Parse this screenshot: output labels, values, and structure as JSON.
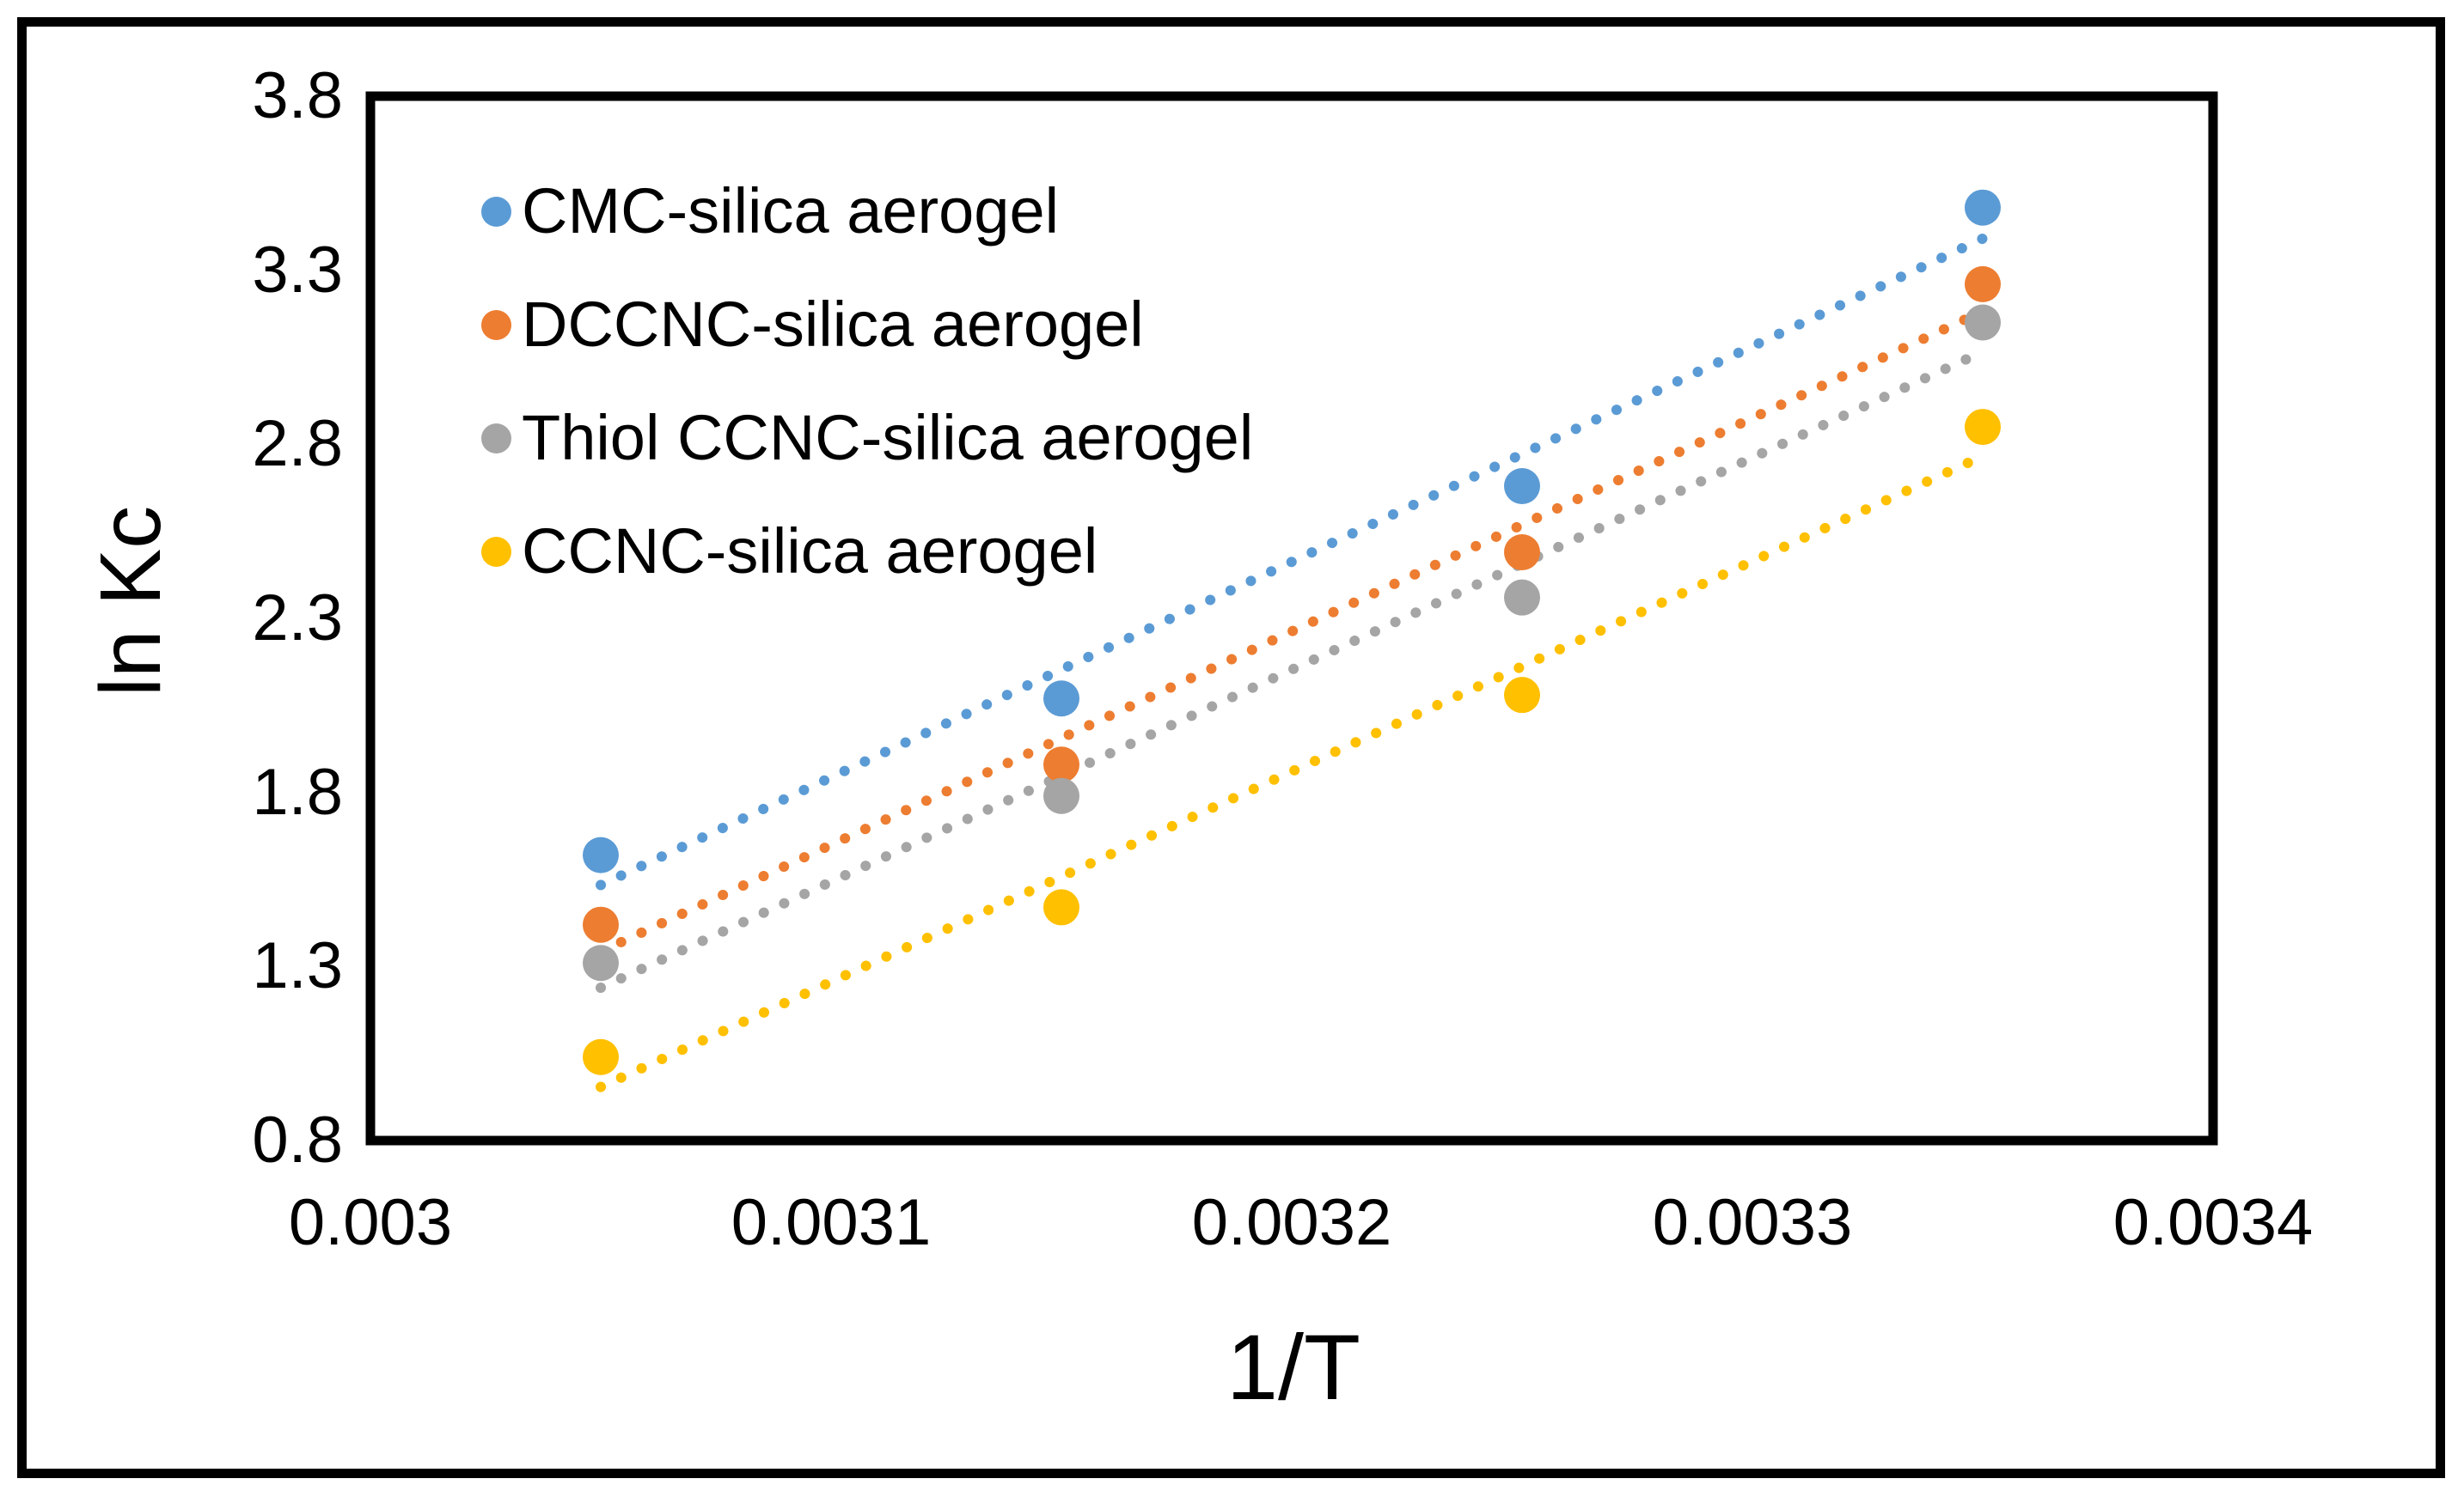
{
  "chart_data": {
    "type": "scatter",
    "xlabel": "1/T",
    "ylabel": "ln Kc",
    "xlim": [
      0.003,
      0.0034
    ],
    "ylim": [
      0.8,
      3.8
    ],
    "grid": false,
    "legend_position": "top-left-inside",
    "trendline": "linear-dotted",
    "xticks": [
      {
        "value": 0.003,
        "label": "0.003"
      },
      {
        "value": 0.0031,
        "label": "0.0031"
      },
      {
        "value": 0.0032,
        "label": "0.0032"
      },
      {
        "value": 0.0033,
        "label": "0.0033"
      },
      {
        "value": 0.0034,
        "label": "0.0034"
      }
    ],
    "yticks": [
      {
        "value": 3.8,
        "label": "3.8"
      },
      {
        "value": 3.3,
        "label": "3.3"
      },
      {
        "value": 2.8,
        "label": "2.8"
      },
      {
        "value": 2.3,
        "label": "2.3"
      },
      {
        "value": 1.8,
        "label": "1.8"
      },
      {
        "value": 1.3,
        "label": "1.3"
      },
      {
        "value": 0.8,
        "label": "0.8"
      }
    ],
    "x": [
      0.00305,
      0.00315,
      0.00325,
      0.00335
    ],
    "series": [
      {
        "name": "CMC-silica aerogel",
        "color": "#5B9BD5",
        "values": [
          1.62,
          2.07,
          2.68,
          3.48
        ]
      },
      {
        "name": "DCCNC-silica aerogel",
        "color": "#ED7D31",
        "values": [
          1.42,
          1.88,
          2.49,
          3.26
        ]
      },
      {
        "name": "Thiol CCNC-silica aerogel",
        "color": "#A5A5A5",
        "values": [
          1.31,
          1.79,
          2.36,
          3.15
        ]
      },
      {
        "name": "CCNC-silica aerogel",
        "color": "#FFC000",
        "values": [
          1.04,
          1.47,
          2.08,
          2.85
        ]
      }
    ],
    "frame_color": "#000000",
    "background_color": "#FFFFFF"
  }
}
